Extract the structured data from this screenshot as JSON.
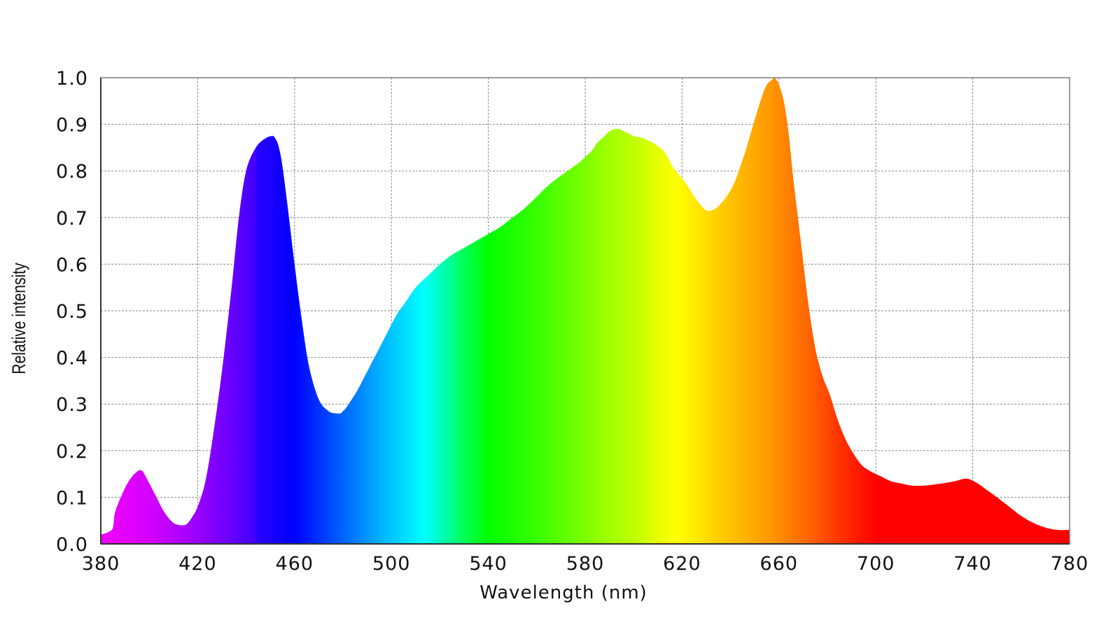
{
  "chart_data": {
    "type": "area",
    "title": "",
    "xlabel": "Wavelength (nm)",
    "ylabel": "Relative intensity",
    "xlim": [
      380,
      780
    ],
    "ylim": [
      0,
      1
    ],
    "x_ticks": [
      "380",
      "420",
      "460",
      "500",
      "540",
      "580",
      "620",
      "660",
      "700",
      "740",
      "780"
    ],
    "y_ticks": [
      "0.0",
      "0.1",
      "0.2",
      "0.3",
      "0.4",
      "0.5",
      "0.6",
      "0.7",
      "0.8",
      "0.9",
      "1.0"
    ],
    "grid": true,
    "legend": "none",
    "fill": "visible-spectrum-gradient",
    "series": [
      {
        "x": [
          380,
          383,
          385,
          386,
          390,
          393,
          395,
          396,
          397,
          398,
          400,
          403,
          406,
          410,
          414,
          416,
          418,
          420,
          423,
          426,
          430,
          434,
          437,
          440,
          444,
          448,
          451,
          452,
          453,
          454,
          455,
          457,
          460,
          463,
          466,
          470,
          474,
          477,
          479,
          480,
          481,
          483,
          486,
          490,
          494,
          498,
          502,
          506,
          510,
          515,
          520,
          525,
          530,
          535,
          540,
          545,
          550,
          555,
          560,
          565,
          570,
          574,
          578,
          581,
          583,
          585,
          587,
          588,
          589,
          590,
          592,
          594,
          596,
          598,
          600,
          604,
          608,
          612,
          614,
          616,
          619,
          622,
          625,
          628,
          630,
          632,
          634,
          636,
          639,
          642,
          646,
          650,
          653,
          655,
          657,
          658,
          659,
          660,
          662,
          664,
          666,
          669,
          672,
          675,
          678,
          681,
          684,
          687,
          690,
          694,
          698,
          702,
          706,
          710,
          715,
          720,
          725,
          730,
          733,
          735,
          737,
          739,
          742,
          746,
          750,
          755,
          760,
          765,
          770,
          775,
          780
        ],
        "y": [
          0.02,
          0.025,
          0.035,
          0.07,
          0.12,
          0.145,
          0.155,
          0.158,
          0.157,
          0.15,
          0.13,
          0.1,
          0.07,
          0.045,
          0.04,
          0.045,
          0.06,
          0.08,
          0.13,
          0.22,
          0.37,
          0.55,
          0.7,
          0.8,
          0.85,
          0.87,
          0.875,
          0.87,
          0.86,
          0.84,
          0.81,
          0.73,
          0.6,
          0.48,
          0.38,
          0.31,
          0.285,
          0.28,
          0.28,
          0.285,
          0.29,
          0.305,
          0.33,
          0.37,
          0.41,
          0.45,
          0.49,
          0.52,
          0.55,
          0.575,
          0.6,
          0.62,
          0.635,
          0.65,
          0.665,
          0.68,
          0.7,
          0.72,
          0.745,
          0.77,
          0.79,
          0.805,
          0.82,
          0.835,
          0.845,
          0.86,
          0.87,
          0.875,
          0.88,
          0.885,
          0.89,
          0.89,
          0.885,
          0.88,
          0.875,
          0.87,
          0.86,
          0.845,
          0.83,
          0.81,
          0.79,
          0.77,
          0.745,
          0.725,
          0.715,
          0.715,
          0.72,
          0.73,
          0.75,
          0.78,
          0.84,
          0.91,
          0.96,
          0.985,
          0.995,
          1.0,
          0.995,
          0.985,
          0.95,
          0.88,
          0.78,
          0.65,
          0.52,
          0.42,
          0.36,
          0.32,
          0.27,
          0.23,
          0.2,
          0.17,
          0.155,
          0.145,
          0.135,
          0.13,
          0.125,
          0.125,
          0.128,
          0.132,
          0.135,
          0.138,
          0.14,
          0.138,
          0.13,
          0.115,
          0.1,
          0.08,
          0.06,
          0.045,
          0.035,
          0.03,
          0.03
        ]
      }
    ]
  }
}
